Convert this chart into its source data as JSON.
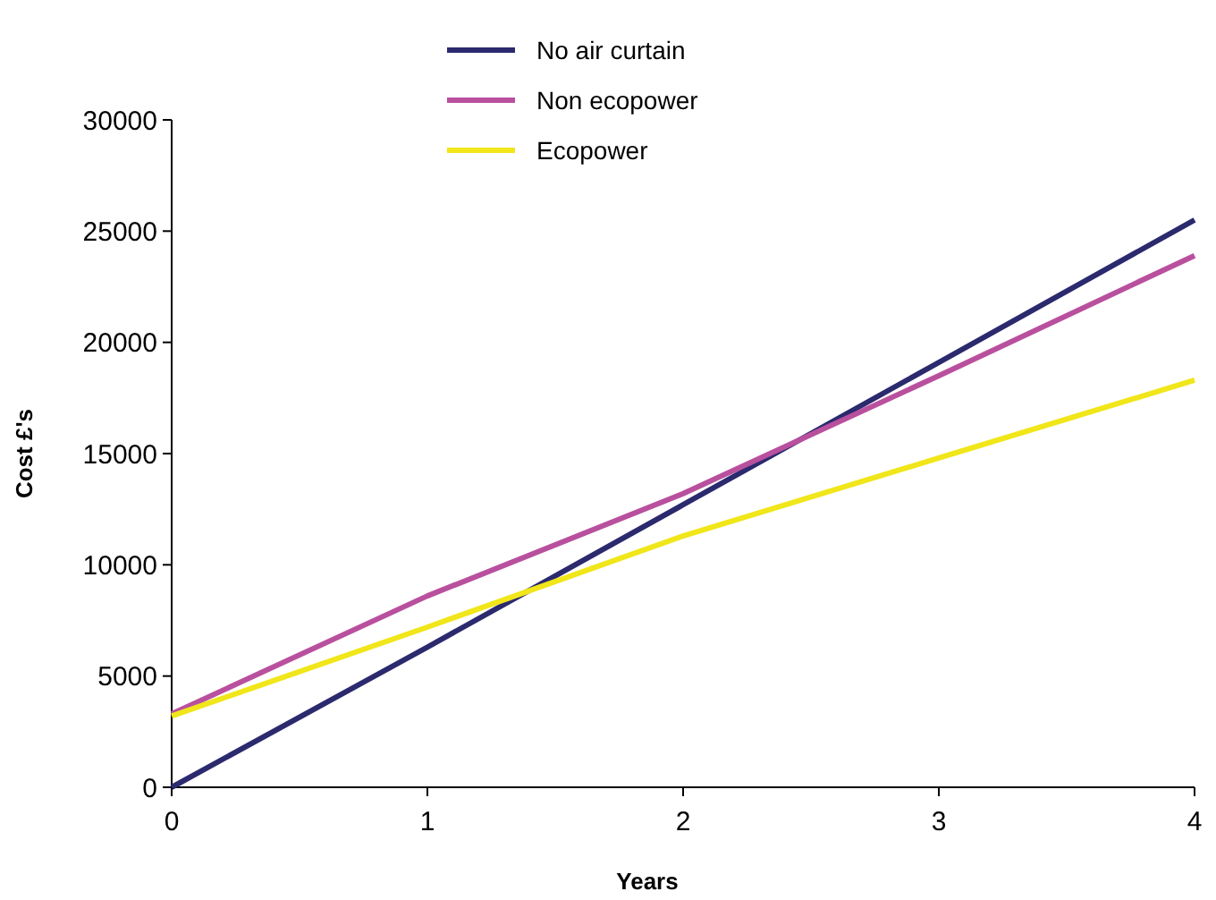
{
  "chart_data": {
    "type": "line",
    "xlabel": "Years",
    "ylabel": "Cost £'s",
    "x": [
      0,
      1,
      2,
      3,
      4
    ],
    "series": [
      {
        "name": "No air curtain",
        "color": "#2b2a6e",
        "values": [
          0,
          6300,
          12700,
          19100,
          25500
        ]
      },
      {
        "name": "Non ecopower",
        "color": "#b9509e",
        "values": [
          3300,
          8600,
          13200,
          18500,
          23900
        ]
      },
      {
        "name": "Ecopower",
        "color": "#f0e619",
        "values": [
          3200,
          7200,
          11300,
          14800,
          18300
        ]
      }
    ],
    "xlim": [
      0,
      4
    ],
    "xticks": [
      0,
      1,
      2,
      3,
      4
    ],
    "ylim": [
      0,
      30000
    ],
    "yticks": [
      0,
      5000,
      10000,
      15000,
      20000,
      25000,
      30000
    ],
    "grid": false,
    "legend": "top",
    "marker": "none",
    "line_style": "solid"
  }
}
